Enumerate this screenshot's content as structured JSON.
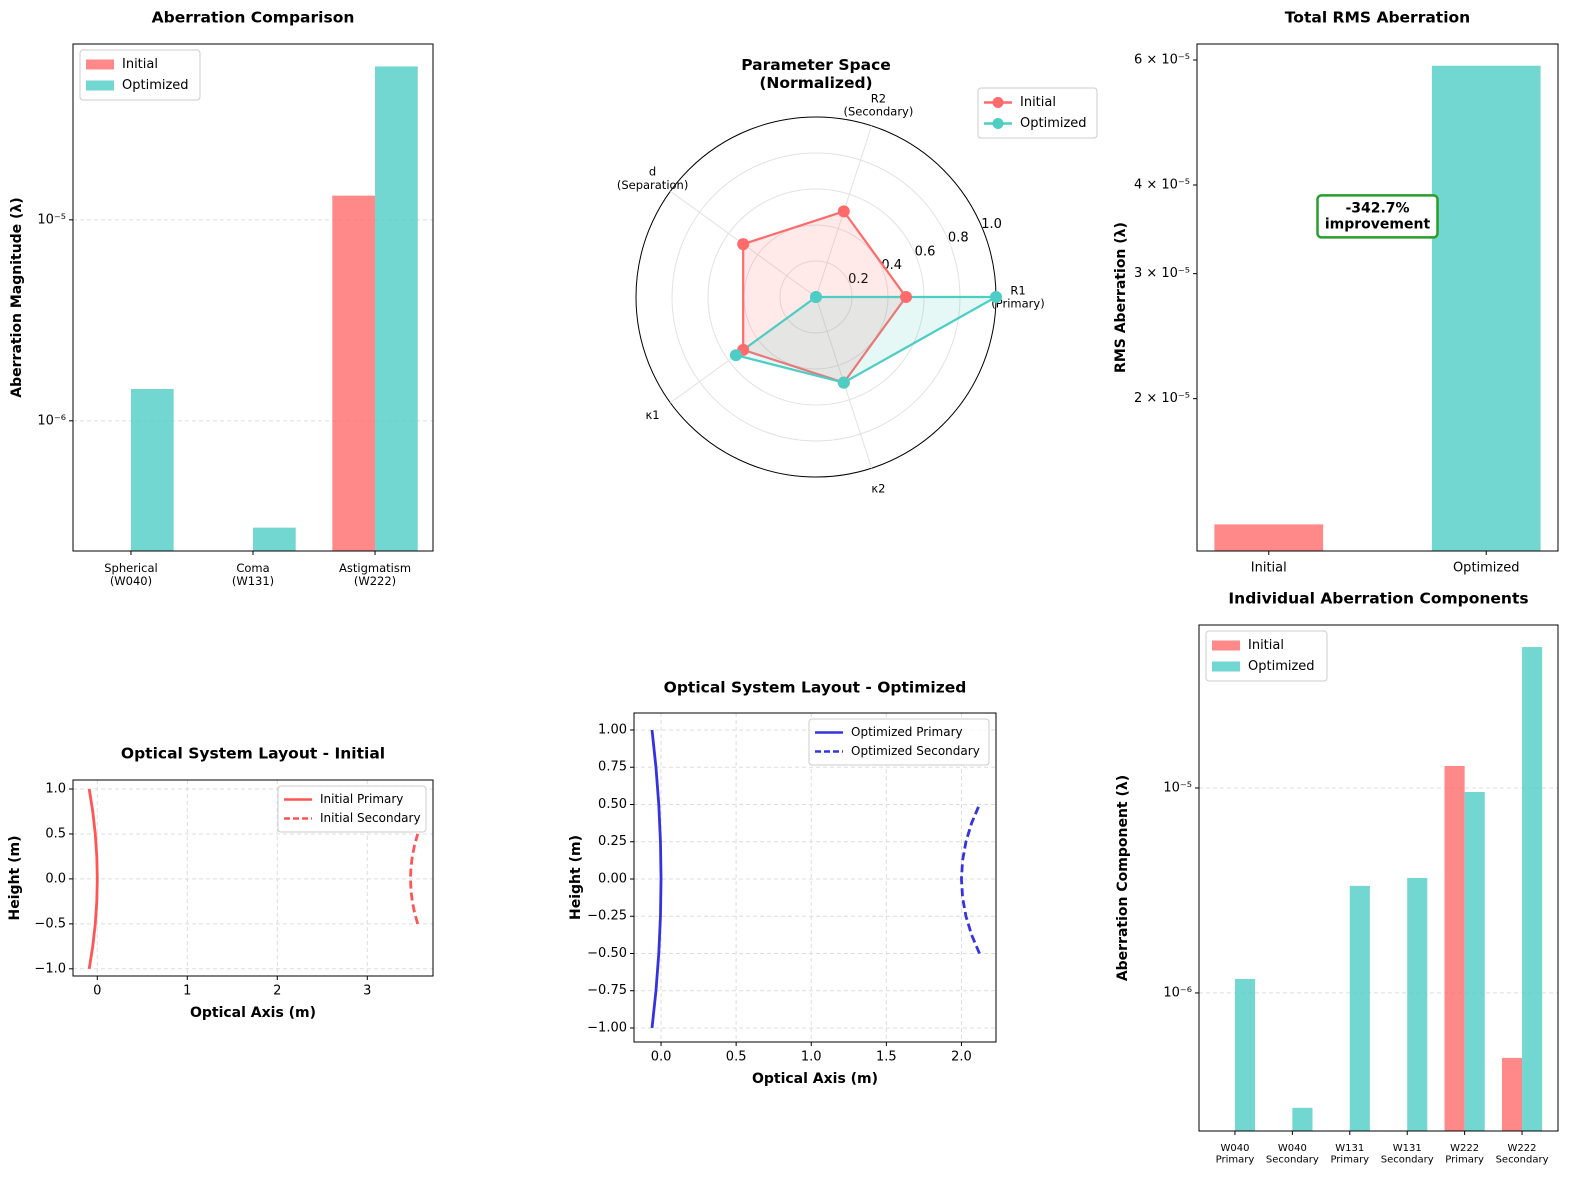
{
  "chart_data": [
    {
      "type": "bar",
      "title": "Aberration Comparison",
      "ylabel": "Aberration Magnitude (λ)",
      "log_scale": true,
      "grid": true,
      "legend": "upper left",
      "categories": [
        "Spherical\n(W040)",
        "Coma\n(W131)",
        "Astigmatism\n(W222)"
      ],
      "series": [
        {
          "name": "Initial",
          "color": "#ff6b6b",
          "values": [
            null,
            null,
            1.32e-05
          ]
        },
        {
          "name": "Optimized",
          "color": "#4ecdc4",
          "values": [
            1.44e-06,
            2.94e-07,
            5.8e-05
          ]
        }
      ],
      "ylim": [
        2.25e-07,
        7.5e-05
      ],
      "yticks": [
        {
          "value": 1e-06,
          "label": "10⁻⁶"
        },
        {
          "value": 1e-05,
          "label": "10⁻⁵"
        }
      ]
    },
    {
      "type": "radar",
      "title": "Parameter Space\n(Normalized)",
      "legend": "upper right",
      "categories": [
        "R1\n(Primary)",
        "R2\n(Secondary)",
        "d\n(Separation)",
        "κ1",
        "κ2"
      ],
      "series": [
        {
          "name": "Initial",
          "color": "#ff6b6b",
          "values": [
            0.5,
            0.5,
            0.5,
            0.5,
            0.5
          ]
        },
        {
          "name": "Optimized",
          "color": "#4ecdc4",
          "values": [
            1.0,
            0,
            0,
            0.55,
            0.5
          ]
        }
      ],
      "rlim": [
        0,
        1
      ],
      "rticks": [
        0.2,
        0.4,
        0.6,
        0.8,
        {
          "value": 1.0,
          "label": "1.0"
        }
      ]
    },
    {
      "type": "bar",
      "title": "Total RMS Aberration",
      "ylabel": "RMS Aberration (λ)",
      "log_scale": true,
      "grid": false,
      "categories": [
        "Initial",
        "Optimized"
      ],
      "values": [
        1.33e-05,
        5.89e-05
      ],
      "colors": [
        "#ff6b6b",
        "#4ecdc4"
      ],
      "annotation": "-342.7%\nimprovement",
      "ylim": [
        1.22e-05,
        6.32e-05
      ],
      "yticks": [
        {
          "value": 2e-05,
          "label": "2 × 10⁻⁵"
        },
        {
          "value": 3e-05,
          "label": "3 × 10⁻⁵"
        },
        {
          "value": 4e-05,
          "label": "4 × 10⁻⁵"
        },
        {
          "value": 6e-05,
          "label": "6 × 10⁻⁵"
        }
      ]
    },
    {
      "type": "line",
      "title": "Optical System Layout - Initial",
      "xlabel": "Optical Axis (m)",
      "ylabel": "Height (m)",
      "grid": true,
      "legend": "upper right",
      "series": [
        {
          "name": "Initial Primary",
          "color": "#ff5555",
          "linestyle": "solid",
          "x": [
            -0.09,
            -0.0506,
            -0.0225,
            -0.0056,
            0,
            -0.0056,
            -0.0225,
            -0.0506,
            -0.09
          ],
          "values": [
            -1,
            -0.75,
            -0.5,
            -0.25,
            0,
            0.25,
            0.5,
            0.75,
            1
          ]
        },
        {
          "name": "Initial Secondary",
          "color": "#ff5555",
          "linestyle": "dashed",
          "x": [
            3.56,
            3.525,
            3.5,
            3.485,
            3.48,
            3.485,
            3.5,
            3.525,
            3.56
          ],
          "values": [
            -0.5,
            -0.375,
            -0.25,
            -0.125,
            0,
            0.125,
            0.25,
            0.375,
            0.5
          ]
        }
      ],
      "xlim": [
        -0.27,
        3.73
      ],
      "xticks": [
        0,
        1,
        2,
        3
      ],
      "ylim": [
        -1.08,
        1.1
      ],
      "yticks": [
        {
          "value": -1,
          "label": "−1.0"
        },
        {
          "value": -0.5,
          "label": "−0.5"
        },
        {
          "value": 0,
          "label": "0.0"
        },
        {
          "value": 0.5,
          "label": "0.5"
        },
        {
          "value": 1,
          "label": "1.0"
        }
      ]
    },
    {
      "type": "line",
      "title": "Optical System Layout - Optimized",
      "xlabel": "Optical Axis (m)",
      "ylabel": "Height (m)",
      "grid": true,
      "legend": "upper right",
      "series": [
        {
          "name": "Optimized Primary",
          "color": "#3333e0",
          "linestyle": "solid",
          "x": [
            -0.06,
            -0.0338,
            -0.015,
            -0.0038,
            0,
            -0.0038,
            -0.015,
            -0.0338,
            -0.06
          ],
          "values": [
            -1,
            -0.75,
            -0.5,
            -0.25,
            0,
            0.25,
            0.5,
            0.75,
            1
          ]
        },
        {
          "name": "Optimized Secondary",
          "color": "#3333e0",
          "linestyle": "dashed",
          "x": [
            2.12,
            2.0675,
            2.03,
            2.0075,
            2.0,
            2.0075,
            2.03,
            2.0675,
            2.12
          ],
          "values": [
            -0.5,
            -0.375,
            -0.25,
            -0.125,
            0,
            0.125,
            0.25,
            0.375,
            0.5
          ]
        }
      ],
      "xlim": [
        -0.18,
        2.23
      ],
      "xticks": [
        {
          "value": 0,
          "label": "0.0"
        },
        0.5,
        {
          "value": 1,
          "label": "1.0"
        },
        1.5,
        {
          "value": 2,
          "label": "2.0"
        }
      ],
      "ylim": [
        -1.094,
        1.114
      ],
      "yticks": [
        {
          "value": -1,
          "label": "−1.00"
        },
        {
          "value": -0.75,
          "label": "−0.75"
        },
        {
          "value": -0.5,
          "label": "−0.50"
        },
        {
          "value": -0.25,
          "label": "−0.25"
        },
        {
          "value": 0,
          "label": "0.00"
        },
        0.25,
        {
          "value": 0.5,
          "label": "0.50"
        },
        0.75,
        {
          "value": 1,
          "label": "1.00"
        }
      ]
    },
    {
      "type": "bar",
      "title": "Individual Aberration Components",
      "ylabel": "Aberration Component (λ)",
      "log_scale": true,
      "grid": true,
      "legend": "upper left",
      "categories": [
        "W040\nPrimary",
        "W040\nSecondary",
        "W131\nPrimary",
        "W131\nSecondary",
        "W222\nPrimary",
        "W222\nSecondary"
      ],
      "series": [
        {
          "name": "Initial",
          "color": "#ff6b6b",
          "values": [
            null,
            null,
            null,
            null,
            1.28e-05,
            4.82e-07
          ]
        },
        {
          "name": "Optimized",
          "color": "#4ecdc4",
          "values": [
            1.17e-06,
            2.75e-07,
            3.33e-06,
            3.64e-06,
            9.56e-06,
            4.87e-05
          ]
        }
      ],
      "ylim": [
        2.12e-07,
        6.24e-05
      ],
      "yticks": [
        {
          "value": 1e-06,
          "label": "10⁻⁶"
        },
        {
          "value": 1e-05,
          "label": "10⁻⁵"
        }
      ]
    }
  ]
}
